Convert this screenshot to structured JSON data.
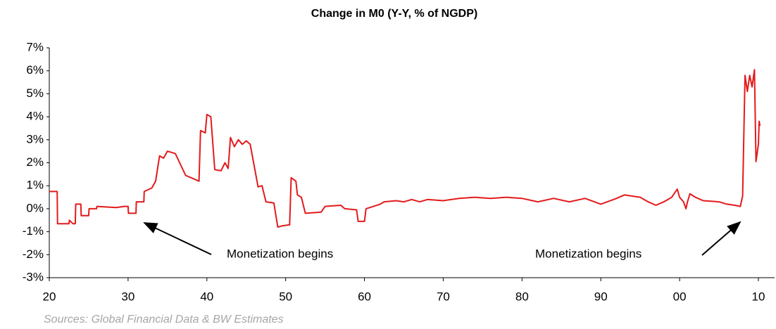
{
  "chart_data": {
    "type": "line",
    "title": "Change in M0 (Y-Y, % of NGDP)",
    "source": "Sources: Global Financial Data & BW Estimates",
    "annotations": [
      {
        "text": "Monetization begins"
      },
      {
        "text": "Monetization begins"
      }
    ],
    "x": [
      1920,
      1921,
      1921.05,
      1922.5,
      1922.55,
      1923,
      1923.3,
      1923.35,
      1924,
      1924.05,
      1925,
      1925.05,
      1926,
      1926.05,
      1928.5,
      1929.5,
      1930,
      1930.05,
      1931,
      1931.05,
      1932,
      1932.05,
      1933,
      1933.5,
      1934,
      1934.5,
      1935,
      1936,
      1937.3,
      1938,
      1939,
      1939.2,
      1939.8,
      1940,
      1940.5,
      1941,
      1941.8,
      1942.3,
      1942.7,
      1943,
      1943.5,
      1944,
      1944.5,
      1945,
      1945.5,
      1946.5,
      1947,
      1947.5,
      1948.5,
      1949,
      1949.5,
      1950.5,
      1950.7,
      1951.3,
      1951.5,
      1952,
      1952.5,
      1954.5,
      1955,
      1957,
      1957.5,
      1959,
      1959.2,
      1960,
      1960.2,
      1962,
      1962.5,
      1964,
      1965,
      1966,
      1967,
      1968,
      1970,
      1972,
      1974,
      1976,
      1978,
      1980,
      1982,
      1984,
      1986,
      1988,
      1990,
      1992,
      1993,
      1995,
      1996,
      1997,
      1998,
      1999,
      1999.7,
      2000,
      2000.5,
      2000.8,
      2001,
      2001.3,
      2002,
      2003,
      2005,
      2006,
      2007,
      2007.7,
      2008,
      2008.3,
      2008.6,
      2008.9,
      2009.2,
      2009.5,
      2009.7,
      2010,
      2010.1,
      2010.2
    ],
    "series": [
      {
        "name": "M0",
        "color": "#e31a1c",
        "values": [
          0.75,
          0.75,
          -0.65,
          -0.65,
          -0.5,
          -0.65,
          -0.65,
          0.2,
          0.2,
          -0.3,
          -0.3,
          0,
          0,
          0.1,
          0.05,
          0.1,
          0.1,
          -0.2,
          -0.2,
          0.3,
          0.3,
          0.75,
          0.9,
          1.2,
          2.3,
          2.2,
          2.5,
          2.4,
          1.45,
          1.35,
          1.2,
          3.4,
          3.3,
          4.1,
          4.0,
          1.7,
          1.65,
          2.0,
          1.75,
          3.1,
          2.7,
          3.0,
          2.8,
          2.95,
          2.8,
          0.95,
          1.0,
          0.3,
          0.25,
          -0.8,
          -0.75,
          -0.7,
          1.35,
          1.2,
          0.6,
          0.5,
          -0.2,
          -0.15,
          0.1,
          0.15,
          0,
          -0.05,
          -0.55,
          -0.55,
          0,
          0.2,
          0.3,
          0.35,
          0.3,
          0.4,
          0.3,
          0.4,
          0.35,
          0.45,
          0.5,
          0.45,
          0.5,
          0.45,
          0.3,
          0.45,
          0.3,
          0.45,
          0.2,
          0.45,
          0.6,
          0.5,
          0.3,
          0.15,
          0.3,
          0.5,
          0.85,
          0.5,
          0.3,
          0,
          0.3,
          0.65,
          0.5,
          0.35,
          0.3,
          0.2,
          0.15,
          0.1,
          0.55,
          5.8,
          5.1,
          5.8,
          5.3,
          6.05,
          2.05,
          2.8,
          3.8,
          3.6
        ]
      }
    ],
    "xlim": [
      1920,
      2010
    ],
    "xticks": [
      {
        "value": 1920,
        "label": "20"
      },
      {
        "value": 1930,
        "label": "30"
      },
      {
        "value": 1940,
        "label": "40"
      },
      {
        "value": 1950,
        "label": "50"
      },
      {
        "value": 1960,
        "label": "60"
      },
      {
        "value": 1970,
        "label": "70"
      },
      {
        "value": 1980,
        "label": "80"
      },
      {
        "value": 1990,
        "label": "90"
      },
      {
        "value": 2000,
        "label": "00"
      },
      {
        "value": 2010,
        "label": "10"
      }
    ],
    "ylim": [
      -3,
      7
    ],
    "yticks": [
      {
        "value": -3,
        "label": "-3%"
      },
      {
        "value": -2,
        "label": "-2%"
      },
      {
        "value": -1,
        "label": "-1%"
      },
      {
        "value": 0,
        "label": "0%"
      },
      {
        "value": 1,
        "label": "1%"
      },
      {
        "value": 2,
        "label": "2%"
      },
      {
        "value": 3,
        "label": "3%"
      },
      {
        "value": 4,
        "label": "4%"
      },
      {
        "value": 5,
        "label": "5%"
      },
      {
        "value": 6,
        "label": "6%"
      },
      {
        "value": 7,
        "label": "7%"
      }
    ],
    "grid": false
  }
}
